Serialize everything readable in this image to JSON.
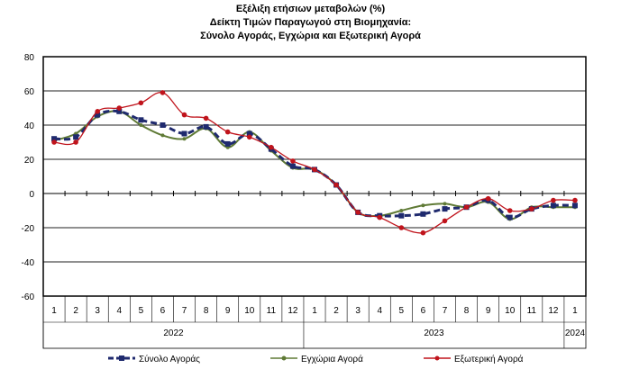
{
  "chart_data": {
    "type": "line",
    "title": [
      "Εξέλιξη ετήσιων μεταβολών (%)",
      "Δείκτη Τιμών Παραγωγού στη Βιομηχανία:",
      "Σύνολο Αγοράς, Εγχώρια και Εξωτερική Αγορά"
    ],
    "categories": [
      "1",
      "2",
      "3",
      "4",
      "5",
      "6",
      "7",
      "8",
      "9",
      "10",
      "11",
      "12",
      "1",
      "2",
      "3",
      "4",
      "5",
      "6",
      "7",
      "8",
      "9",
      "10",
      "11",
      "12",
      "1"
    ],
    "years": [
      {
        "label": "2022",
        "from": 0,
        "to": 11
      },
      {
        "label": "2023",
        "from": 12,
        "to": 23
      },
      {
        "label": "2024",
        "from": 24,
        "to": 24
      }
    ],
    "ylim": [
      -60,
      80
    ],
    "yticks": [
      -60,
      -40,
      -20,
      0,
      20,
      40,
      60,
      80
    ],
    "grid": true,
    "legend": "bottom",
    "series": [
      {
        "name": "Σύνολο Αγοράς",
        "color": "#1f2a6e",
        "style": "dashed",
        "values": [
          32,
          33,
          46,
          48,
          43,
          40,
          35,
          39,
          29,
          35,
          26,
          16,
          14,
          5,
          -11,
          -13,
          -13,
          -12,
          -9,
          -8,
          -4,
          -14,
          -9,
          -7,
          -7
        ]
      },
      {
        "name": "Εγχώρια Αγορά",
        "color": "#5f7a35",
        "style": "solid",
        "values": [
          31,
          35,
          45,
          48,
          40,
          34,
          32,
          38,
          27,
          36,
          25,
          15,
          14,
          5,
          -11,
          -13,
          -10,
          -7,
          -6,
          -8,
          -5,
          -15,
          -8,
          -8,
          -8
        ]
      },
      {
        "name": "Εξωτερική Αγορά",
        "color": "#c0141c",
        "style": "solid",
        "values": [
          30,
          30,
          48,
          50,
          53,
          59,
          46,
          44,
          36,
          33,
          27,
          19,
          14,
          5,
          -11,
          -14,
          -20,
          -23,
          -16,
          -8,
          -3,
          -10,
          -9,
          -4,
          -4
        ]
      }
    ]
  }
}
